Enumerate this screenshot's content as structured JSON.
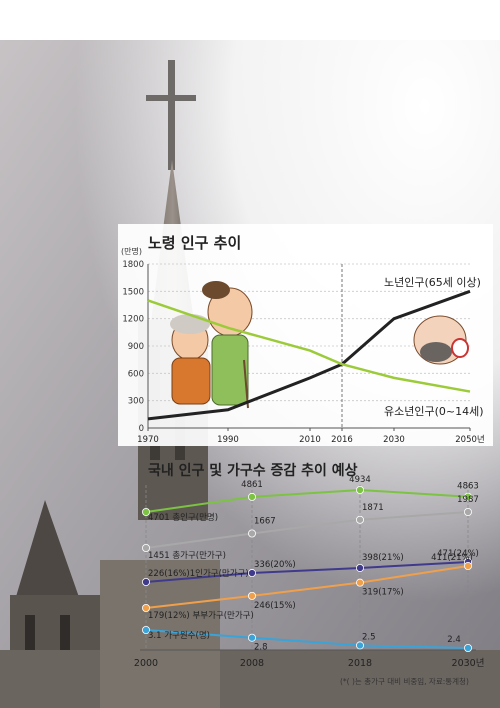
{
  "chart_data": [
    {
      "type": "line",
      "title": "노령 인구 추이",
      "ylabel": "(만명)",
      "x": [
        "1970",
        "1990",
        "2010",
        "2016",
        "2030",
        "2050년"
      ],
      "yticks": [
        "0",
        "300",
        "600",
        "900",
        "1200",
        "1500",
        "1800"
      ],
      "ylim": [
        0,
        1800
      ],
      "series": [
        {
          "name": "노년인구(65세 이상)",
          "color": "#222222",
          "values": [
            100,
            200,
            550,
            700,
            1200,
            1500
          ]
        },
        {
          "name": "유소년인구(0~14세)",
          "color": "#9ccb3a",
          "values": [
            1400,
            1100,
            850,
            700,
            550,
            400
          ]
        }
      ],
      "grid": true,
      "annotation": "2016 dashed vertical line"
    },
    {
      "type": "line",
      "title": "국내 인구 및 가구수 증감 추이 예상",
      "x": [
        "2000",
        "2008",
        "2018",
        "2030년"
      ],
      "series": [
        {
          "name": "총인구(만명)",
          "color": "#7cc243",
          "values": [
            4701,
            4861,
            4934,
            4863
          ],
          "labels": [
            "4701 총인구(만명)",
            "4861",
            "4934",
            "4863"
          ]
        },
        {
          "name": "총가구(만가구)",
          "color": "#a8a8a8",
          "values": [
            1451,
            1667,
            1871,
            1987
          ],
          "labels": [
            "1451 총가구(만가구)",
            "1667",
            "1871",
            "1987"
          ]
        },
        {
          "name": "1인가구(만가구)",
          "color": "#3f3a8c",
          "values": [
            226,
            336,
            398,
            471
          ],
          "labels": [
            "226(16%)1인가구(만가구)",
            "336(20%)",
            "398(21%)",
            "471(24%)"
          ]
        },
        {
          "name": "부부가구(만가구)",
          "color": "#f0a04b",
          "values": [
            179,
            246,
            319,
            411
          ],
          "labels": [
            "179(12%) 부부가구(만가구)",
            "246(15%)",
            "319(17%)",
            "411(21%)"
          ]
        },
        {
          "name": "가구원수(명)",
          "color": "#3aa3d8",
          "values": [
            3.1,
            2.8,
            2.5,
            2.4
          ],
          "labels": [
            "3.1 가구원수(명)",
            "2.8",
            "2.5",
            "2.4"
          ]
        }
      ],
      "footnote": "(*( )는 총가구 대비 비중임, 자료:통계청)"
    }
  ]
}
